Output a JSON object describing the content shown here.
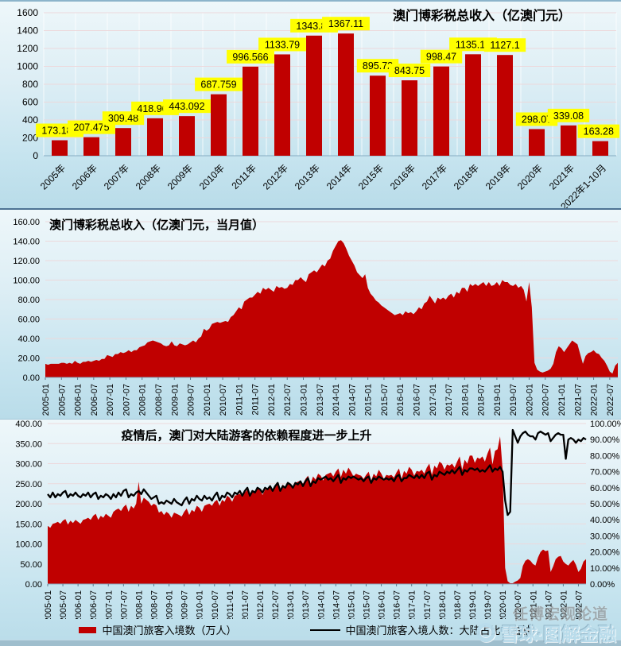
{
  "colors": {
    "bar_red": "#c00000",
    "label_bg": "#ffff00",
    "line_black": "#000000",
    "grid_pink": "#ecd9dc",
    "grid_white": "rgba(255,255,255,0.75)",
    "axis_blue": "#86abc2",
    "tick_gray": "#5a7b90"
  },
  "watermark": {
    "line1": "任博宏观论道",
    "line2": "雪球·图解金融",
    "logo": "xueqiu-snowball-logo"
  },
  "chart_data": [
    {
      "type": "bar",
      "title": "澳门博彩税总收入（亿澳门元）",
      "categories": [
        "2005年",
        "2006年",
        "2007年",
        "2008年",
        "2009年",
        "2010年",
        "2011年",
        "2012年",
        "2013年",
        "2014年",
        "2015年",
        "2016年",
        "2017年",
        "2018年",
        "2019年",
        "2020年",
        "2021年",
        "2022年1-10月"
      ],
      "values": [
        173.187,
        207.475,
        309.48,
        418.965,
        443.092,
        687.759,
        996.566,
        1133.79,
        1343.81,
        1367.11,
        895.72,
        843.75,
        998.47,
        1135.13,
        1127.1,
        298.07,
        339.08,
        163.28
      ],
      "labels": [
        "173.187",
        "207.475",
        "309.48",
        "418.965",
        "443.092",
        "687.759",
        "996.566",
        "1133.79",
        "1343.81",
        "1367.11",
        "895.72",
        "843.75",
        "998.47",
        "1135.13",
        "1127.1",
        "298.07",
        "339.08",
        "163.28"
      ],
      "ylim": [
        0,
        1600
      ],
      "yticks": [
        "0",
        "200",
        "400",
        "600",
        "800",
        "1000",
        "1200",
        "1400",
        "1600"
      ],
      "grid": "horizontal-and-vertical",
      "legend_position": "none"
    },
    {
      "type": "area",
      "title": "澳门博彩税总收入（亿澳门元，当月值）",
      "x_start": "2005-01",
      "x_end": "2022-10",
      "x_frequency": "monthly",
      "xticks": [
        "2005-01",
        "2005-07",
        "2006-01",
        "2006-07",
        "2007-01",
        "2007-07",
        "2008-01",
        "2008-07",
        "2009-01",
        "2009-07",
        "2010-01",
        "2010-07",
        "2011-01",
        "2011-07",
        "2012-01",
        "2012-07",
        "2013-01",
        "2013-07",
        "2014-01",
        "2014-07",
        "2015-01",
        "2015-07",
        "2016-01",
        "2016-07",
        "2017-01",
        "2017-07",
        "2018-01",
        "2018-07",
        "2019-01",
        "2019-07",
        "2020-01",
        "2020-07",
        "2021-01",
        "2021-07",
        "2022-01",
        "2022-07"
      ],
      "values": [
        14,
        13,
        14,
        14,
        14,
        14,
        15,
        15,
        14,
        15,
        14,
        17,
        15,
        14,
        16,
        16,
        17,
        16,
        17,
        18,
        17,
        19,
        19,
        23,
        22,
        21,
        24,
        24,
        26,
        25,
        26,
        28,
        26,
        28,
        28,
        31,
        32,
        33,
        36,
        37,
        38,
        37,
        36,
        35,
        33,
        32,
        33,
        37,
        33,
        32,
        35,
        34,
        33,
        34,
        36,
        38,
        36,
        40,
        42,
        50,
        48,
        50,
        55,
        56,
        57,
        56,
        57,
        58,
        57,
        62,
        64,
        68,
        72,
        70,
        78,
        80,
        82,
        82,
        85,
        88,
        86,
        92,
        90,
        92,
        90,
        88,
        94,
        92,
        93,
        91,
        92,
        96,
        95,
        100,
        100,
        103,
        100,
        98,
        106,
        108,
        110,
        108,
        112,
        116,
        114,
        120,
        122,
        130,
        135,
        140,
        141,
        138,
        132,
        125,
        120,
        115,
        108,
        105,
        102,
        106,
        92,
        86,
        83,
        79,
        77,
        74,
        72,
        70,
        68,
        66,
        64,
        65,
        66,
        64,
        68,
        66,
        67,
        65,
        68,
        72,
        70,
        76,
        78,
        84,
        80,
        76,
        82,
        80,
        82,
        80,
        84,
        86,
        82,
        88,
        86,
        92,
        92,
        88,
        96,
        94,
        96,
        94,
        96,
        98,
        94,
        98,
        94,
        95,
        98,
        94,
        100,
        98,
        98,
        95,
        94,
        96,
        92,
        94,
        90,
        78,
        98,
        72,
        15,
        8,
        6,
        5,
        6,
        7,
        9,
        14,
        26,
        32,
        30,
        26,
        30,
        34,
        38,
        36,
        34,
        24,
        14,
        22,
        25,
        26,
        28,
        25,
        24,
        20,
        17,
        12,
        6,
        4,
        12,
        15
      ],
      "ylim": [
        0,
        160
      ],
      "yticks": [
        "0.00",
        "20.00",
        "40.00",
        "60.00",
        "80.00",
        "100.00",
        "120.00",
        "140.00",
        "160.00"
      ],
      "grid": "horizontal",
      "legend_position": "none"
    },
    {
      "type": "area+line",
      "title": "疫情后，澳门对大陆游客的依赖程度进一步上升",
      "x_start": "2005-01",
      "x_end": "2022-10",
      "x_frequency": "monthly",
      "xticks": [
        "2005-01",
        "2005-07",
        "2006-01",
        "2006-07",
        "2007-01",
        "2007-07",
        "2008-01",
        "2008-07",
        "2009-01",
        "2009-07",
        "2010-01",
        "2010-07",
        "2011-01",
        "2011-07",
        "2012-01",
        "2012-07",
        "2013-01",
        "2013-07",
        "2014-01",
        "2014-07",
        "2015-01",
        "2015-07",
        "2016-01",
        "2016-07",
        "2017-01",
        "2017-07",
        "2018-01",
        "2018-07",
        "2019-01",
        "2019-07",
        "2020-01",
        "2020-07",
        "2021-01",
        "2021-07",
        "2022-01",
        "2022-07"
      ],
      "series": [
        {
          "name": "中国澳门旅客入境数（万人）",
          "type": "area",
          "axis": "left",
          "values": [
            145,
            140,
            150,
            152,
            155,
            150,
            158,
            162,
            148,
            158,
            152,
            160,
            155,
            150,
            160,
            162,
            165,
            160,
            170,
            175,
            160,
            170,
            165,
            175,
            170,
            165,
            180,
            185,
            188,
            182,
            192,
            198,
            180,
            195,
            188,
            200,
            255,
            200,
            215,
            210,
            205,
            195,
            200,
            196,
            178,
            182,
            172,
            180,
            175,
            165,
            178,
            175,
            172,
            168,
            180,
            188,
            172,
            185,
            180,
            195,
            190,
            180,
            195,
            198,
            200,
            195,
            205,
            210,
            195,
            210,
            205,
            220,
            215,
            205,
            220,
            222,
            225,
            218,
            228,
            235,
            218,
            232,
            225,
            240,
            235,
            222,
            235,
            238,
            240,
            232,
            242,
            250,
            232,
            248,
            240,
            255,
            250,
            238,
            252,
            255,
            258,
            250,
            262,
            270,
            250,
            268,
            260,
            275,
            270,
            258,
            272,
            275,
            278,
            268,
            280,
            288,
            266,
            285,
            275,
            290,
            280,
            268,
            275,
            272,
            270,
            262,
            272,
            280,
            258,
            275,
            268,
            285,
            275,
            262,
            272,
            270,
            272,
            265,
            278,
            288,
            262,
            282,
            275,
            292,
            285,
            270,
            282,
            280,
            285,
            275,
            290,
            300,
            272,
            295,
            288,
            305,
            300,
            285,
            298,
            295,
            300,
            290,
            305,
            318,
            285,
            310,
            300,
            320,
            320,
            302,
            315,
            312,
            318,
            305,
            325,
            340,
            298,
            332,
            336,
            368,
            285,
            40,
            7,
            2,
            2,
            6,
            9,
            15,
            45,
            58,
            62,
            58,
            50,
            46,
            66,
            80,
            86,
            82,
            84,
            30,
            44,
            62,
            68,
            70,
            56,
            50,
            46,
            54,
            60,
            48,
            30,
            38,
            56,
            62
          ]
        },
        {
          "name": "中国澳门旅客入境人数：大陆占比（右轴）",
          "type": "line",
          "axis": "right",
          "values": [
            56,
            54,
            57,
            54,
            56,
            55,
            57,
            58,
            54,
            56,
            55,
            57,
            55,
            54,
            56,
            55,
            57,
            54,
            56,
            57,
            53,
            55,
            54,
            56,
            55,
            53,
            56,
            54,
            57,
            55,
            58,
            59,
            54,
            56,
            55,
            57,
            58,
            56,
            59,
            57,
            55,
            53,
            54,
            55,
            50,
            51,
            50,
            52,
            51,
            50,
            53,
            51,
            50,
            49,
            52,
            54,
            50,
            53,
            52,
            55,
            53,
            52,
            55,
            53,
            54,
            52,
            55,
            57,
            52,
            55,
            54,
            57,
            56,
            54,
            57,
            56,
            58,
            55,
            58,
            60,
            55,
            58,
            57,
            60,
            59,
            57,
            60,
            59,
            61,
            58,
            61,
            63,
            58,
            61,
            60,
            63,
            62,
            60,
            63,
            62,
            64,
            61,
            64,
            66,
            61,
            64,
            63,
            66,
            65,
            66,
            67,
            65,
            66,
            64,
            66,
            68,
            63,
            66,
            65,
            67,
            66,
            67,
            66,
            65,
            66,
            64,
            66,
            67,
            63,
            66,
            65,
            67,
            66,
            65,
            66,
            65,
            66,
            64,
            67,
            68,
            64,
            66,
            66,
            68,
            67,
            66,
            68,
            66,
            68,
            66,
            69,
            70,
            65,
            68,
            67,
            70,
            69,
            68,
            70,
            69,
            71,
            69,
            71,
            73,
            68,
            71,
            70,
            72,
            72,
            71,
            72,
            70,
            71,
            70,
            72,
            74,
            70,
            72,
            71,
            73,
            70,
            52,
            43,
            45,
            96,
            92,
            88,
            92,
            94,
            95,
            93,
            92,
            92,
            90,
            94,
            95,
            94,
            93,
            94,
            89,
            91,
            93,
            94,
            93,
            93,
            78,
            90,
            91,
            90,
            88,
            90,
            89,
            91,
            90
          ]
        }
      ],
      "ylim_left": [
        0,
        400
      ],
      "yticks_left": [
        "0.00",
        "50.00",
        "100.00",
        "150.00",
        "200.00",
        "250.00",
        "300.00",
        "350.00",
        "400.00"
      ],
      "ylim_right": [
        0,
        100
      ],
      "yticks_right": [
        "0.00%",
        "10.00%",
        "20.00%",
        "30.00%",
        "40.00%",
        "50.00%",
        "60.00%",
        "70.00%",
        "80.00%",
        "90.00%",
        "100.00%"
      ],
      "grid": "horizontal",
      "legend_position": "bottom"
    }
  ]
}
